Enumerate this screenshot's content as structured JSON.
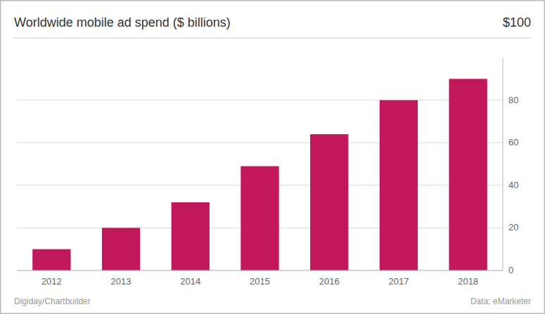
{
  "chart_data": {
    "type": "bar",
    "title": "Worldwide mobile ad spend ($ billions)",
    "annotations": [
      "$100",
      "Digiday/Chartbuilder",
      "Data: eMarketer"
    ],
    "categories": [
      "2012",
      "2013",
      "2014",
      "2015",
      "2016",
      "2017",
      "2018"
    ],
    "values": [
      10.0,
      20.0,
      32.0,
      49.0,
      64.0,
      80.0,
      90.0
    ],
    "color": "#C0185A",
    "ylim": [
      0,
      100
    ],
    "yticks": [
      0,
      20,
      40,
      60,
      80
    ],
    "grid": true
  }
}
